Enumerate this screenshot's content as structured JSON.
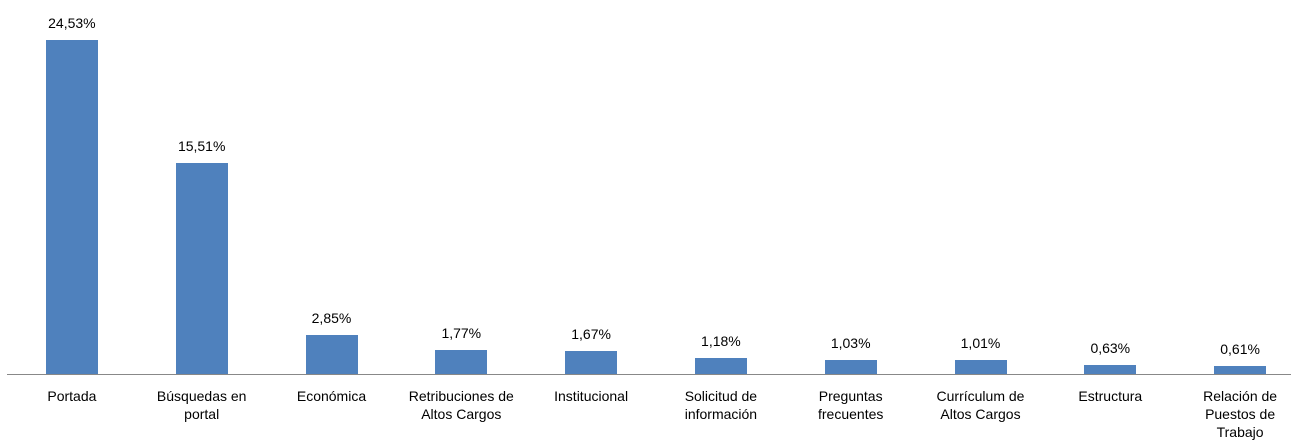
{
  "chart_data": {
    "type": "bar",
    "categories": [
      "Portada",
      "Búsquedas en portal",
      "Económica",
      "Retribuciones de Altos Cargos",
      "Institucional",
      "Solicitud de información",
      "Preguntas frecuentes",
      "Currículum de Altos Cargos",
      "Estructura",
      "Relación de Puestos de Trabajo"
    ],
    "values": [
      24.53,
      15.51,
      2.85,
      1.77,
      1.67,
      1.18,
      1.03,
      1.01,
      0.63,
      0.61
    ],
    "value_labels": [
      "24,53%",
      "15,51%",
      "2,85%",
      "1,77%",
      "1,67%",
      "1,18%",
      "1,03%",
      "1,01%",
      "0,63%",
      "0,61%"
    ],
    "color": "#4f81bd"
  }
}
